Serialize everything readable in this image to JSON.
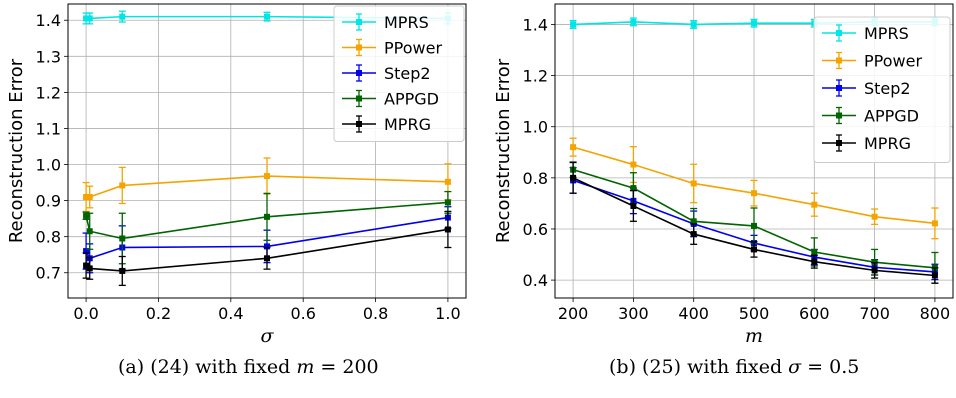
{
  "chart_data": [
    {
      "type": "line",
      "caption_prefix": "(a) (24) with fixed ",
      "caption_var": "m",
      "caption_rest": " = 200",
      "xlabel": "σ",
      "ylabel": "Reconstruction Error",
      "xlim": [
        -0.05,
        1.05
      ],
      "ylim": [
        0.63,
        1.445
      ],
      "xticks": [
        0.0,
        0.2,
        0.4,
        0.6,
        0.8,
        1.0
      ],
      "xtick_labels": [
        "0.0",
        "0.2",
        "0.4",
        "0.6",
        "0.8",
        "1.0"
      ],
      "yticks": [
        0.7,
        0.8,
        0.9,
        1.0,
        1.1,
        1.2,
        1.3,
        1.4
      ],
      "ytick_labels": [
        "0.7",
        "0.8",
        "0.9",
        "1.0",
        "1.1",
        "1.2",
        "1.3",
        "1.4"
      ],
      "grid": true,
      "legend_position": "top-right",
      "x": [
        0.0,
        0.01,
        0.1,
        0.5,
        1.0
      ],
      "series": [
        {
          "name": "MPRS",
          "color": "#00e5e5",
          "y": [
            1.405,
            1.405,
            1.41,
            1.41,
            1.405
          ],
          "err": [
            0.015,
            0.015,
            0.015,
            0.012,
            0.015
          ]
        },
        {
          "name": "PPower",
          "color": "#f5a300",
          "y": [
            0.91,
            0.91,
            0.942,
            0.968,
            0.952
          ],
          "err": [
            0.04,
            0.03,
            0.05,
            0.05,
            0.05
          ]
        },
        {
          "name": "Step2",
          "color": "#0000ee",
          "y": [
            0.76,
            0.74,
            0.77,
            0.773,
            0.853
          ],
          "err": [
            0.05,
            0.04,
            0.06,
            0.045,
            0.03
          ]
        },
        {
          "name": "APPGD",
          "color": "#006400",
          "y": [
            0.858,
            0.815,
            0.795,
            0.855,
            0.895
          ],
          "err": [
            0.01,
            0.05,
            0.07,
            0.065,
            0.03
          ]
        },
        {
          "name": "MPRG",
          "color": "#000000",
          "y": [
            0.72,
            0.712,
            0.705,
            0.74,
            0.82
          ],
          "err": [
            0.035,
            0.03,
            0.04,
            0.03,
            0.05
          ]
        }
      ]
    },
    {
      "type": "line",
      "caption_prefix": "(b) (25) with fixed ",
      "caption_var": "σ",
      "caption_rest": " = 0.5",
      "xlabel": "m",
      "ylabel": "Reconstruction Error",
      "xlim": [
        170,
        830
      ],
      "ylim": [
        0.33,
        1.48
      ],
      "xticks": [
        200,
        300,
        400,
        500,
        600,
        700,
        800
      ],
      "xtick_labels": [
        "200",
        "300",
        "400",
        "500",
        "600",
        "700",
        "800"
      ],
      "yticks": [
        0.4,
        0.6,
        0.8,
        1.0,
        1.2,
        1.4
      ],
      "ytick_labels": [
        "0.4",
        "0.6",
        "0.8",
        "1.0",
        "1.2",
        "1.4"
      ],
      "grid": true,
      "legend_position": "upper-right",
      "x": [
        200,
        300,
        400,
        500,
        600,
        700,
        800
      ],
      "series": [
        {
          "name": "MPRS",
          "color": "#00e5e5",
          "y": [
            1.4,
            1.41,
            1.4,
            1.405,
            1.405,
            1.41,
            1.41
          ],
          "err": [
            0.015,
            0.015,
            0.015,
            0.015,
            0.015,
            0.015,
            0.015
          ]
        },
        {
          "name": "PPower",
          "color": "#f5a300",
          "y": [
            0.92,
            0.852,
            0.778,
            0.74,
            0.695,
            0.648,
            0.622
          ],
          "err": [
            0.035,
            0.07,
            0.075,
            0.05,
            0.045,
            0.03,
            0.06
          ]
        },
        {
          "name": "Step2",
          "color": "#0000ee",
          "y": [
            0.79,
            0.71,
            0.62,
            0.545,
            0.49,
            0.45,
            0.432
          ],
          "err": [
            0.05,
            0.05,
            0.05,
            0.03,
            0.03,
            0.03,
            0.03
          ]
        },
        {
          "name": "APPGD",
          "color": "#006400",
          "y": [
            0.832,
            0.76,
            0.63,
            0.612,
            0.51,
            0.47,
            0.448
          ],
          "err": [
            0.03,
            0.06,
            0.05,
            0.07,
            0.055,
            0.05,
            0.06
          ]
        },
        {
          "name": "MPRG",
          "color": "#000000",
          "y": [
            0.8,
            0.69,
            0.58,
            0.52,
            0.472,
            0.438,
            0.418
          ],
          "err": [
            0.06,
            0.06,
            0.04,
            0.03,
            0.025,
            0.03,
            0.03
          ]
        }
      ]
    }
  ]
}
